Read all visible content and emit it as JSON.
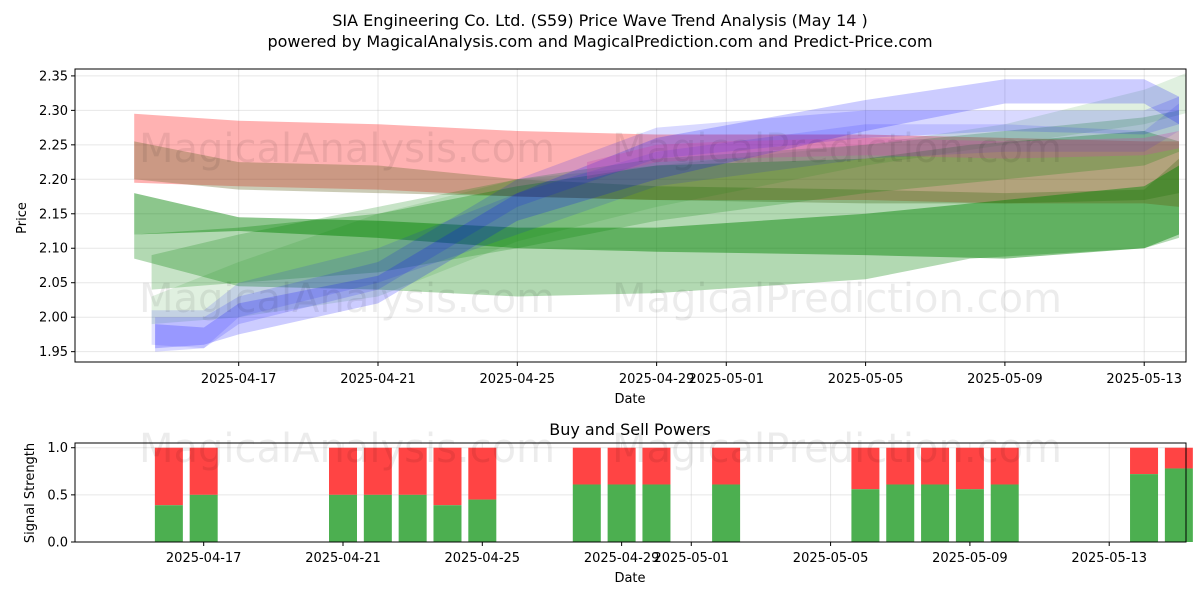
{
  "title_line1": "SIA Engineering Co. Ltd. (S59) Price Wave Trend Analysis (May 14 )",
  "title_line2": "powered by MagicalAnalysis.com and MagicalPrediction.com and Predict-Price.com",
  "watermarks": [
    "MagicalAnalysis.com",
    "MagicalPrediction.com"
  ],
  "colors": {
    "red": "#ff0000",
    "green": "#008000",
    "blue": "#0000ff",
    "olive": "#6b6b2e",
    "magenta": "#cc44aa",
    "bar_buy": "#4caf50",
    "bar_sell": "#ff4444"
  },
  "chart_data": [
    {
      "type": "area",
      "title": "",
      "xlabel": "Date",
      "ylabel": "Price",
      "xlim": [
        -4.7,
        27.2
      ],
      "ylim": [
        1.935,
        2.36
      ],
      "x_origin_date": "2025-04-17",
      "x_ticks": [
        0,
        4,
        8,
        12,
        14,
        18,
        22,
        26
      ],
      "x_tick_labels": [
        "2025-04-17",
        "2025-04-21",
        "2025-04-25",
        "2025-04-29",
        "2025-05-01",
        "2025-05-05",
        "2025-05-09",
        "2025-05-13"
      ],
      "y_ticks": [
        1.95,
        2.0,
        2.05,
        2.1,
        2.15,
        2.2,
        2.25,
        2.3,
        2.35
      ],
      "y_tick_labels": [
        "1.95",
        "2.00",
        "2.05",
        "2.10",
        "2.15",
        "2.20",
        "2.25",
        "2.30",
        "2.35"
      ],
      "grid": true,
      "series": [
        {
          "name": "red band",
          "color": "red",
          "opacity": 0.3,
          "x": [
            -3,
            0,
            4,
            8,
            12,
            18,
            22,
            26,
            27
          ],
          "upper": [
            2.295,
            2.285,
            2.28,
            2.27,
            2.265,
            2.265,
            2.26,
            2.255,
            2.255
          ],
          "lower": [
            2.195,
            2.19,
            2.185,
            2.175,
            2.17,
            2.17,
            2.165,
            2.165,
            2.16
          ]
        },
        {
          "name": "olive band",
          "color": "olive",
          "opacity": 0.35,
          "x": [
            -3,
            0,
            4,
            8,
            12,
            18,
            22,
            26,
            27
          ],
          "upper": [
            2.255,
            2.225,
            2.22,
            2.2,
            2.19,
            2.185,
            2.18,
            2.185,
            2.23
          ],
          "lower": [
            2.2,
            2.185,
            2.18,
            2.175,
            2.17,
            2.165,
            2.165,
            2.17,
            2.18
          ]
        },
        {
          "name": "green band 1",
          "color": "green",
          "opacity": 0.45,
          "x": [
            -3,
            0,
            4,
            8,
            12,
            18,
            22,
            26,
            27
          ],
          "upper": [
            2.18,
            2.145,
            2.14,
            2.13,
            2.13,
            2.15,
            2.17,
            2.19,
            2.22
          ],
          "lower": [
            2.12,
            2.125,
            2.115,
            2.1,
            2.095,
            2.09,
            2.085,
            2.1,
            2.12
          ]
        },
        {
          "name": "green band 2",
          "color": "green",
          "opacity": 0.3,
          "x": [
            -3,
            0,
            4,
            8,
            12,
            18,
            21,
            26,
            27
          ],
          "upper": [
            2.12,
            2.13,
            2.15,
            2.19,
            2.22,
            2.23,
            2.25,
            2.27,
            2.255
          ],
          "lower": [
            2.085,
            2.045,
            2.04,
            2.03,
            2.035,
            2.055,
            2.085,
            2.1,
            2.115
          ]
        },
        {
          "name": "green band 3",
          "color": "green",
          "opacity": 0.22,
          "x": [
            -2.5,
            0,
            4,
            8,
            12,
            18,
            22,
            26,
            27
          ],
          "upper": [
            2.09,
            2.12,
            2.16,
            2.2,
            2.23,
            2.25,
            2.27,
            2.29,
            2.3
          ],
          "lower": [
            2.04,
            2.05,
            2.065,
            2.1,
            2.14,
            2.18,
            2.2,
            2.22,
            2.24
          ]
        },
        {
          "name": "green band 4",
          "color": "green",
          "opacity": 0.12,
          "x": [
            -2.5,
            0,
            4,
            8,
            12,
            18,
            22,
            26,
            27.5
          ],
          "upper": [
            2.03,
            2.08,
            2.15,
            2.2,
            2.22,
            2.25,
            2.28,
            2.33,
            2.36
          ],
          "lower": [
            1.99,
            2.0,
            2.03,
            2.11,
            2.16,
            2.22,
            2.25,
            2.28,
            2.3
          ]
        },
        {
          "name": "blue band 1",
          "color": "blue",
          "opacity": 0.2,
          "x": [
            -2.4,
            -1,
            0,
            4,
            8,
            12,
            18,
            22,
            26,
            27
          ],
          "upper": [
            1.99,
            1.985,
            2.02,
            2.06,
            2.18,
            2.26,
            2.315,
            2.345,
            2.345,
            2.32
          ],
          "lower": [
            1.955,
            1.96,
            1.975,
            2.02,
            2.14,
            2.2,
            2.27,
            2.31,
            2.31,
            2.28
          ]
        },
        {
          "name": "blue band 2",
          "color": "blue",
          "opacity": 0.15,
          "x": [
            -2.4,
            -1,
            0,
            4,
            8,
            12,
            18,
            22,
            26,
            27
          ],
          "upper": [
            2.0,
            2.0,
            2.03,
            2.08,
            2.2,
            2.275,
            2.3,
            2.3,
            2.3,
            2.32
          ],
          "lower": [
            1.95,
            1.955,
            1.99,
            2.04,
            2.16,
            2.23,
            2.26,
            2.27,
            2.265,
            2.28
          ]
        },
        {
          "name": "blue band 3",
          "color": "blue",
          "opacity": 0.12,
          "x": [
            -2.5,
            -1,
            0,
            4,
            8,
            12,
            18,
            22,
            26,
            27
          ],
          "upper": [
            2.01,
            2.01,
            2.05,
            2.1,
            2.18,
            2.24,
            2.28,
            2.28,
            2.27,
            2.31
          ],
          "lower": [
            1.96,
            1.955,
            2.0,
            2.05,
            2.12,
            2.19,
            2.23,
            2.24,
            2.24,
            2.27
          ]
        },
        {
          "name": "magenta band",
          "color": "magenta",
          "opacity": 0.3,
          "x": [
            10,
            12,
            14,
            18,
            22,
            26,
            27
          ],
          "upper": [
            2.225,
            2.25,
            2.255,
            2.26,
            2.255,
            2.26,
            2.27
          ],
          "lower": [
            2.2,
            2.225,
            2.23,
            2.235,
            2.23,
            2.235,
            2.245
          ]
        }
      ]
    },
    {
      "type": "bar",
      "title": "Buy and Sell Powers",
      "xlabel": "Date",
      "ylabel": "Signal Strength",
      "ylim": [
        0,
        1.05
      ],
      "y_ticks": [
        0.0,
        0.5,
        1.0
      ],
      "y_tick_labels": [
        "0.0",
        "0.5",
        "1.0"
      ],
      "x_ticks": [
        0,
        4,
        8,
        12,
        14,
        18,
        22,
        26
      ],
      "x_tick_labels": [
        "2025-04-17",
        "2025-04-21",
        "2025-04-25",
        "2025-04-29",
        "2025-05-01",
        "2025-05-05",
        "2025-05-09",
        "2025-05-13"
      ],
      "x": [
        -1,
        0,
        4,
        5,
        6,
        7,
        8,
        11,
        12,
        13,
        15,
        19,
        20,
        21,
        22,
        23,
        27,
        28
      ],
      "buy": [
        0.39,
        0.5,
        0.5,
        0.5,
        0.5,
        0.39,
        0.45,
        0.61,
        0.61,
        0.61,
        0.61,
        0.56,
        0.61,
        0.61,
        0.56,
        0.61,
        0.72,
        0.78
      ],
      "sell_total": 1.0
    }
  ]
}
